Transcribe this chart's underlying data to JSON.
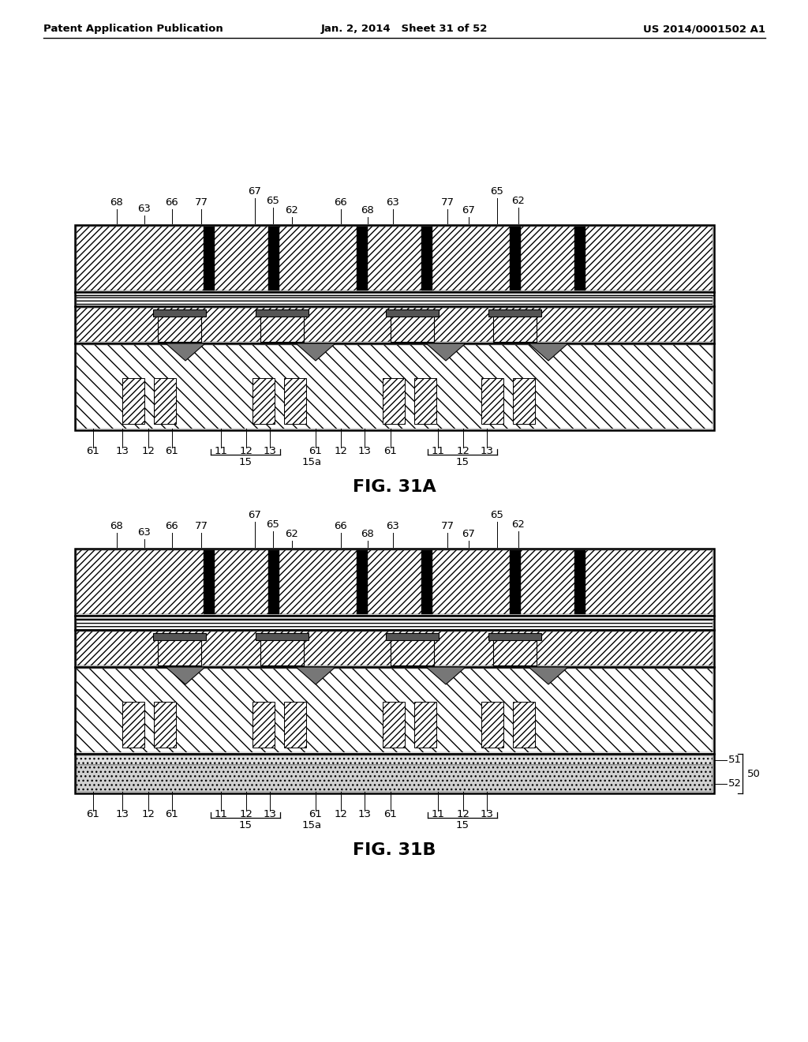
{
  "header_left": "Patent Application Publication",
  "header_mid": "Jan. 2, 2014   Sheet 31 of 52",
  "header_right": "US 2014/0001502 A1",
  "fig1_title": "FIG. 31A",
  "fig2_title": "FIG. 31B",
  "bg_color": "#ffffff",
  "line_color": "#000000",
  "label_fontsize": 9.5,
  "title_fontsize": 16,
  "header_fontsize": 9.5
}
